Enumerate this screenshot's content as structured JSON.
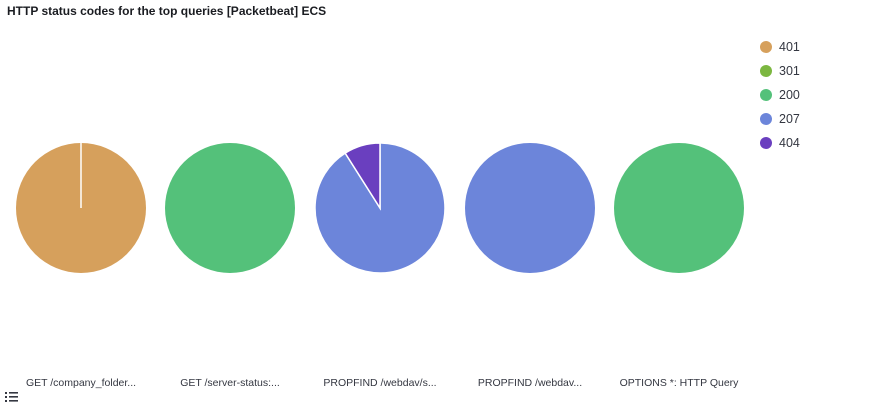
{
  "panel": {
    "title": "HTTP status codes for the top queries [Packetbeat] ECS"
  },
  "legend": [
    {
      "label": "401",
      "color": "#d6a05c"
    },
    {
      "label": "301",
      "color": "#7cb740"
    },
    {
      "label": "200",
      "color": "#54c17a"
    },
    {
      "label": "207",
      "color": "#6c85da"
    },
    {
      "label": "404",
      "color": "#6a3fbf"
    }
  ],
  "legend_toggle_icon": "list-icon",
  "chart_data": {
    "type": "pie",
    "split_by": "query",
    "pies": [
      {
        "label": "GET /company_folder...",
        "slices": [
          {
            "name": "401",
            "value": 100
          }
        ]
      },
      {
        "label": "GET /server-status:...",
        "slices": [
          {
            "name": "200",
            "value": 100
          }
        ]
      },
      {
        "label": "PROPFIND /webdav/s...",
        "slices": [
          {
            "name": "207",
            "value": 91
          },
          {
            "name": "404",
            "value": 9
          }
        ]
      },
      {
        "label": "PROPFIND /webdav...",
        "slices": [
          {
            "name": "207",
            "value": 100
          }
        ]
      },
      {
        "label": "OPTIONS *: HTTP Query",
        "slices": [
          {
            "name": "200",
            "value": 100
          }
        ]
      }
    ]
  }
}
